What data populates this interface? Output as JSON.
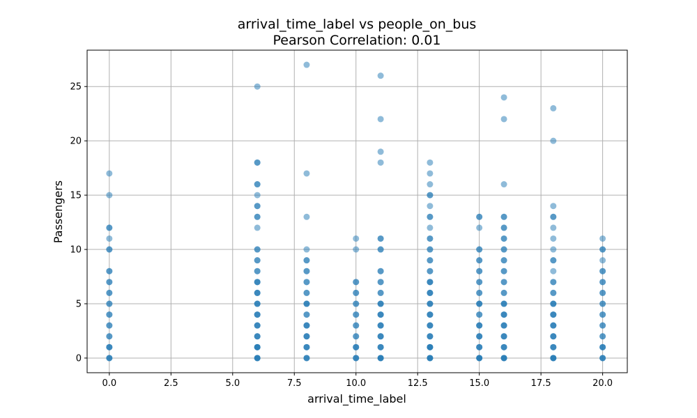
{
  "chart_data": {
    "type": "scatter",
    "title": "arrival_time_label vs people_on_bus",
    "subtitle": "Pearson Correlation: 0.01",
    "xlabel": "arrival_time_label",
    "ylabel": "Passengers",
    "xlim": [
      -0.9,
      21.0
    ],
    "ylim": [
      -1.35,
      28.35
    ],
    "xticks": [
      0.0,
      2.5,
      5.0,
      7.5,
      10.0,
      12.5,
      15.0,
      17.5,
      20.0
    ],
    "xtick_labels": [
      "0.0",
      "2.5",
      "5.0",
      "7.5",
      "10.0",
      "12.5",
      "15.0",
      "17.5",
      "20.0"
    ],
    "yticks": [
      0,
      5,
      10,
      15,
      20,
      25
    ],
    "ytick_labels": [
      "0",
      "5",
      "10",
      "15",
      "20",
      "25"
    ],
    "grid": true,
    "marker_color": "#1f77b4",
    "marker_alpha": 0.5,
    "points": [
      [
        0,
        0
      ],
      [
        0,
        0
      ],
      [
        0,
        0
      ],
      [
        0,
        1
      ],
      [
        0,
        1
      ],
      [
        0,
        1
      ],
      [
        0,
        2
      ],
      [
        0,
        2
      ],
      [
        0,
        3
      ],
      [
        0,
        3
      ],
      [
        0,
        4
      ],
      [
        0,
        4
      ],
      [
        0,
        5
      ],
      [
        0,
        5
      ],
      [
        0,
        6
      ],
      [
        0,
        6
      ],
      [
        0,
        7
      ],
      [
        0,
        7
      ],
      [
        0,
        8
      ],
      [
        0,
        8
      ],
      [
        0,
        10
      ],
      [
        0,
        10
      ],
      [
        0,
        11
      ],
      [
        0,
        12
      ],
      [
        0,
        12
      ],
      [
        0,
        15
      ],
      [
        0,
        17
      ],
      [
        6,
        0
      ],
      [
        6,
        0
      ],
      [
        6,
        0
      ],
      [
        6,
        0
      ],
      [
        6,
        1
      ],
      [
        6,
        1
      ],
      [
        6,
        1
      ],
      [
        6,
        1
      ],
      [
        6,
        2
      ],
      [
        6,
        2
      ],
      [
        6,
        2
      ],
      [
        6,
        3
      ],
      [
        6,
        3
      ],
      [
        6,
        3
      ],
      [
        6,
        4
      ],
      [
        6,
        4
      ],
      [
        6,
        4
      ],
      [
        6,
        5
      ],
      [
        6,
        5
      ],
      [
        6,
        5
      ],
      [
        6,
        6
      ],
      [
        6,
        6
      ],
      [
        6,
        6
      ],
      [
        6,
        7
      ],
      [
        6,
        7
      ],
      [
        6,
        7
      ],
      [
        6,
        8
      ],
      [
        6,
        8
      ],
      [
        6,
        9
      ],
      [
        6,
        9
      ],
      [
        6,
        10
      ],
      [
        6,
        10
      ],
      [
        6,
        12
      ],
      [
        6,
        13
      ],
      [
        6,
        13
      ],
      [
        6,
        14
      ],
      [
        6,
        14
      ],
      [
        6,
        15
      ],
      [
        6,
        16
      ],
      [
        6,
        16
      ],
      [
        6,
        18
      ],
      [
        6,
        18
      ],
      [
        6,
        25
      ],
      [
        8,
        0
      ],
      [
        8,
        0
      ],
      [
        8,
        0
      ],
      [
        8,
        1
      ],
      [
        8,
        1
      ],
      [
        8,
        1
      ],
      [
        8,
        2
      ],
      [
        8,
        2
      ],
      [
        8,
        2
      ],
      [
        8,
        3
      ],
      [
        8,
        3
      ],
      [
        8,
        3
      ],
      [
        8,
        4
      ],
      [
        8,
        4
      ],
      [
        8,
        5
      ],
      [
        8,
        5
      ],
      [
        8,
        5
      ],
      [
        8,
        6
      ],
      [
        8,
        6
      ],
      [
        8,
        7
      ],
      [
        8,
        7
      ],
      [
        8,
        8
      ],
      [
        8,
        8
      ],
      [
        8,
        9
      ],
      [
        8,
        9
      ],
      [
        8,
        10
      ],
      [
        8,
        13
      ],
      [
        8,
        17
      ],
      [
        8,
        27
      ],
      [
        10,
        0
      ],
      [
        10,
        0
      ],
      [
        10,
        0
      ],
      [
        10,
        1
      ],
      [
        10,
        1
      ],
      [
        10,
        1
      ],
      [
        10,
        2
      ],
      [
        10,
        2
      ],
      [
        10,
        3
      ],
      [
        10,
        3
      ],
      [
        10,
        4
      ],
      [
        10,
        4
      ],
      [
        10,
        5
      ],
      [
        10,
        5
      ],
      [
        10,
        6
      ],
      [
        10,
        6
      ],
      [
        10,
        7
      ],
      [
        10,
        7
      ],
      [
        10,
        10
      ],
      [
        10,
        11
      ],
      [
        11,
        0
      ],
      [
        11,
        0
      ],
      [
        11,
        0
      ],
      [
        11,
        0
      ],
      [
        11,
        1
      ],
      [
        11,
        1
      ],
      [
        11,
        1
      ],
      [
        11,
        2
      ],
      [
        11,
        2
      ],
      [
        11,
        2
      ],
      [
        11,
        3
      ],
      [
        11,
        3
      ],
      [
        11,
        3
      ],
      [
        11,
        4
      ],
      [
        11,
        4
      ],
      [
        11,
        4
      ],
      [
        11,
        5
      ],
      [
        11,
        5
      ],
      [
        11,
        5
      ],
      [
        11,
        6
      ],
      [
        11,
        6
      ],
      [
        11,
        7
      ],
      [
        11,
        7
      ],
      [
        11,
        8
      ],
      [
        11,
        8
      ],
      [
        11,
        10
      ],
      [
        11,
        10
      ],
      [
        11,
        11
      ],
      [
        11,
        11
      ],
      [
        11,
        18
      ],
      [
        11,
        19
      ],
      [
        11,
        22
      ],
      [
        11,
        26
      ],
      [
        13,
        0
      ],
      [
        13,
        0
      ],
      [
        13,
        0
      ],
      [
        13,
        0
      ],
      [
        13,
        1
      ],
      [
        13,
        1
      ],
      [
        13,
        1
      ],
      [
        13,
        1
      ],
      [
        13,
        2
      ],
      [
        13,
        2
      ],
      [
        13,
        2
      ],
      [
        13,
        3
      ],
      [
        13,
        3
      ],
      [
        13,
        3
      ],
      [
        13,
        4
      ],
      [
        13,
        4
      ],
      [
        13,
        4
      ],
      [
        13,
        5
      ],
      [
        13,
        5
      ],
      [
        13,
        5
      ],
      [
        13,
        6
      ],
      [
        13,
        6
      ],
      [
        13,
        6
      ],
      [
        13,
        7
      ],
      [
        13,
        7
      ],
      [
        13,
        7
      ],
      [
        13,
        8
      ],
      [
        13,
        8
      ],
      [
        13,
        9
      ],
      [
        13,
        9
      ],
      [
        13,
        10
      ],
      [
        13,
        10
      ],
      [
        13,
        11
      ],
      [
        13,
        11
      ],
      [
        13,
        12
      ],
      [
        13,
        13
      ],
      [
        13,
        13
      ],
      [
        13,
        14
      ],
      [
        13,
        15
      ],
      [
        13,
        15
      ],
      [
        13,
        16
      ],
      [
        13,
        17
      ],
      [
        13,
        18
      ],
      [
        15,
        0
      ],
      [
        15,
        0
      ],
      [
        15,
        0
      ],
      [
        15,
        0
      ],
      [
        15,
        1
      ],
      [
        15,
        1
      ],
      [
        15,
        1
      ],
      [
        15,
        2
      ],
      [
        15,
        2
      ],
      [
        15,
        2
      ],
      [
        15,
        3
      ],
      [
        15,
        3
      ],
      [
        15,
        3
      ],
      [
        15,
        4
      ],
      [
        15,
        4
      ],
      [
        15,
        5
      ],
      [
        15,
        5
      ],
      [
        15,
        5
      ],
      [
        15,
        6
      ],
      [
        15,
        6
      ],
      [
        15,
        7
      ],
      [
        15,
        7
      ],
      [
        15,
        8
      ],
      [
        15,
        8
      ],
      [
        15,
        9
      ],
      [
        15,
        9
      ],
      [
        15,
        10
      ],
      [
        15,
        10
      ],
      [
        15,
        12
      ],
      [
        15,
        13
      ],
      [
        15,
        13
      ],
      [
        16,
        0
      ],
      [
        16,
        0
      ],
      [
        16,
        0
      ],
      [
        16,
        0
      ],
      [
        16,
        1
      ],
      [
        16,
        1
      ],
      [
        16,
        1
      ],
      [
        16,
        2
      ],
      [
        16,
        2
      ],
      [
        16,
        2
      ],
      [
        16,
        3
      ],
      [
        16,
        3
      ],
      [
        16,
        3
      ],
      [
        16,
        4
      ],
      [
        16,
        4
      ],
      [
        16,
        4
      ],
      [
        16,
        5
      ],
      [
        16,
        5
      ],
      [
        16,
        5
      ],
      [
        16,
        6
      ],
      [
        16,
        6
      ],
      [
        16,
        7
      ],
      [
        16,
        7
      ],
      [
        16,
        8
      ],
      [
        16,
        8
      ],
      [
        16,
        9
      ],
      [
        16,
        9
      ],
      [
        16,
        10
      ],
      [
        16,
        10
      ],
      [
        16,
        11
      ],
      [
        16,
        11
      ],
      [
        16,
        12
      ],
      [
        16,
        12
      ],
      [
        16,
        13
      ],
      [
        16,
        13
      ],
      [
        16,
        16
      ],
      [
        16,
        22
      ],
      [
        16,
        24
      ],
      [
        18,
        0
      ],
      [
        18,
        0
      ],
      [
        18,
        0
      ],
      [
        18,
        0
      ],
      [
        18,
        1
      ],
      [
        18,
        1
      ],
      [
        18,
        1
      ],
      [
        18,
        2
      ],
      [
        18,
        2
      ],
      [
        18,
        2
      ],
      [
        18,
        3
      ],
      [
        18,
        3
      ],
      [
        18,
        3
      ],
      [
        18,
        4
      ],
      [
        18,
        4
      ],
      [
        18,
        4
      ],
      [
        18,
        5
      ],
      [
        18,
        5
      ],
      [
        18,
        5
      ],
      [
        18,
        6
      ],
      [
        18,
        6
      ],
      [
        18,
        7
      ],
      [
        18,
        7
      ],
      [
        18,
        8
      ],
      [
        18,
        9
      ],
      [
        18,
        9
      ],
      [
        18,
        10
      ],
      [
        18,
        11
      ],
      [
        18,
        12
      ],
      [
        18,
        13
      ],
      [
        18,
        13
      ],
      [
        18,
        14
      ],
      [
        18,
        20
      ],
      [
        18,
        23
      ],
      [
        20,
        0
      ],
      [
        20,
        0
      ],
      [
        20,
        0
      ],
      [
        20,
        1
      ],
      [
        20,
        1
      ],
      [
        20,
        1
      ],
      [
        20,
        2
      ],
      [
        20,
        2
      ],
      [
        20,
        3
      ],
      [
        20,
        3
      ],
      [
        20,
        4
      ],
      [
        20,
        4
      ],
      [
        20,
        5
      ],
      [
        20,
        5
      ],
      [
        20,
        6
      ],
      [
        20,
        6
      ],
      [
        20,
        7
      ],
      [
        20,
        7
      ],
      [
        20,
        8
      ],
      [
        20,
        8
      ],
      [
        20,
        9
      ],
      [
        20,
        10
      ],
      [
        20,
        10
      ],
      [
        20,
        11
      ]
    ]
  }
}
